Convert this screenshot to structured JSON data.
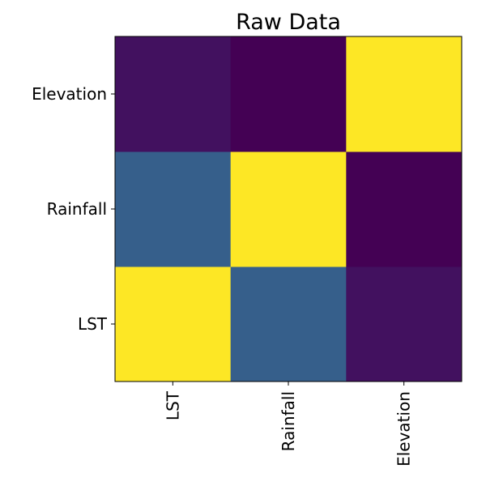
{
  "chart_data": {
    "type": "heatmap",
    "title": "Raw Data",
    "x_categories": [
      "LST",
      "Rainfall",
      "Elevation"
    ],
    "y_categories": [
      "LST",
      "Rainfall",
      "Elevation"
    ],
    "matrix": [
      [
        1.0,
        0.3,
        0.05
      ],
      [
        0.3,
        1.0,
        0.0
      ],
      [
        0.05,
        0.0,
        1.0
      ]
    ],
    "colormap": "viridis",
    "colormap_stops": [
      "#440154",
      "#3b528b",
      "#21918c",
      "#5ec962",
      "#fde725"
    ],
    "vmin": 0,
    "vmax": 1,
    "grid": false,
    "legend": "none"
  }
}
